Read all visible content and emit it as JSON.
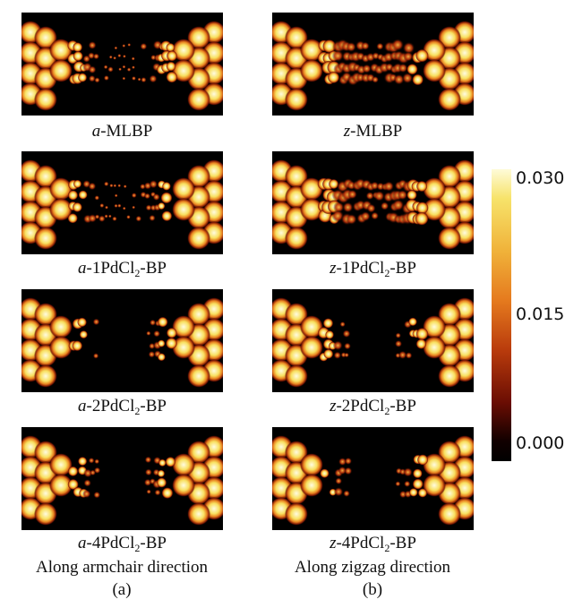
{
  "panels": [
    {
      "prefix": "a",
      "pre": "-",
      "mid": "MLBP",
      "sub": "",
      "post": ""
    },
    {
      "prefix": "z",
      "pre": "-",
      "mid": "MLBP",
      "sub": "",
      "post": ""
    },
    {
      "prefix": "a",
      "pre": "-1PdCl",
      "mid": "",
      "sub": "2",
      "post": "-BP"
    },
    {
      "prefix": "z",
      "pre": "-1PdCl",
      "mid": "",
      "sub": "2",
      "post": "-BP"
    },
    {
      "prefix": "a",
      "pre": "-2PdCl",
      "mid": "",
      "sub": "2",
      "post": "-BP"
    },
    {
      "prefix": "z",
      "pre": "-2PdCl",
      "mid": "",
      "sub": "2",
      "post": "-BP"
    },
    {
      "prefix": "a",
      "pre": "-4PdCl",
      "mid": "",
      "sub": "2",
      "post": "-BP"
    },
    {
      "prefix": "z",
      "pre": "-4PdCl",
      "mid": "",
      "sub": "2",
      "post": "-BP"
    }
  ],
  "columns": {
    "left_title": "Along armchair direction",
    "right_title": "Along zigzag direction",
    "left_label": "(a)",
    "right_label": "(b)"
  },
  "colorbar": {
    "max_label": "0.030",
    "mid_label": "0.015",
    "min_label": "0.000",
    "colormap": [
      "#000000",
      "#6a0d03",
      "#b93b0c",
      "#e57a1e",
      "#f0b23a",
      "#f7e36a",
      "#fefbd8"
    ]
  }
}
